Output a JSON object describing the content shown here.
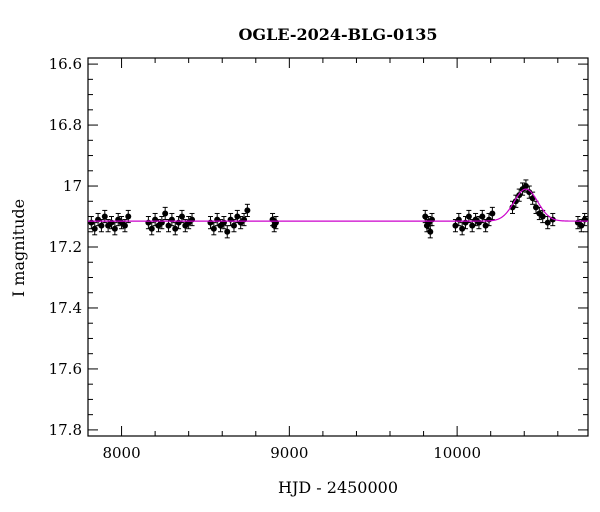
{
  "chart_data": {
    "type": "scatter",
    "title": "OGLE-2024-BLG-0135",
    "xlabel": "HJD - 2450000",
    "ylabel": "I magnitude",
    "xlim": [
      7800,
      10780
    ],
    "ylim": [
      17.82,
      16.58
    ],
    "y_inverted": true,
    "x_ticks": [
      8000,
      9000,
      10000
    ],
    "y_ticks": [
      16.6,
      16.8,
      17,
      17.2,
      17.4,
      17.6,
      17.8
    ],
    "y_tick_labels": [
      "16.6",
      "16.8",
      "17",
      "17.2",
      "17.4",
      "17.6",
      "17.8"
    ],
    "x_tick_labels": [
      "8000",
      "9000",
      "10000"
    ],
    "grid": false,
    "series": [
      {
        "kind": "observations",
        "color": "#000000",
        "typical_error": 0.02,
        "points": [
          [
            7820,
            17.12
          ],
          [
            7840,
            17.14
          ],
          [
            7860,
            17.11
          ],
          [
            7880,
            17.13
          ],
          [
            7900,
            17.1
          ],
          [
            7920,
            17.13
          ],
          [
            7940,
            17.12
          ],
          [
            7960,
            17.14
          ],
          [
            7980,
            17.11
          ],
          [
            8000,
            17.12
          ],
          [
            8020,
            17.13
          ],
          [
            8040,
            17.1
          ],
          [
            8160,
            17.12
          ],
          [
            8180,
            17.14
          ],
          [
            8200,
            17.11
          ],
          [
            8220,
            17.13
          ],
          [
            8240,
            17.12
          ],
          [
            8260,
            17.09
          ],
          [
            8280,
            17.13
          ],
          [
            8300,
            17.11
          ],
          [
            8320,
            17.14
          ],
          [
            8340,
            17.12
          ],
          [
            8360,
            17.1
          ],
          [
            8380,
            17.13
          ],
          [
            8400,
            17.12
          ],
          [
            8420,
            17.11
          ],
          [
            8530,
            17.12
          ],
          [
            8550,
            17.14
          ],
          [
            8570,
            17.11
          ],
          [
            8590,
            17.13
          ],
          [
            8610,
            17.12
          ],
          [
            8630,
            17.15
          ],
          [
            8650,
            17.11
          ],
          [
            8670,
            17.13
          ],
          [
            8690,
            17.1
          ],
          [
            8710,
            17.12
          ],
          [
            8730,
            17.11
          ],
          [
            8750,
            17.08
          ],
          [
            8900,
            17.11
          ],
          [
            8910,
            17.13
          ],
          [
            8920,
            17.12
          ],
          [
            9810,
            17.1
          ],
          [
            9820,
            17.13
          ],
          [
            9830,
            17.12
          ],
          [
            9840,
            17.15
          ],
          [
            9850,
            17.11
          ],
          [
            9990,
            17.13
          ],
          [
            10010,
            17.11
          ],
          [
            10030,
            17.14
          ],
          [
            10050,
            17.12
          ],
          [
            10070,
            17.1
          ],
          [
            10090,
            17.13
          ],
          [
            10110,
            17.11
          ],
          [
            10130,
            17.12
          ],
          [
            10150,
            17.1
          ],
          [
            10170,
            17.13
          ],
          [
            10190,
            17.11
          ],
          [
            10210,
            17.09
          ],
          [
            10330,
            17.07
          ],
          [
            10350,
            17.05
          ],
          [
            10370,
            17.03
          ],
          [
            10390,
            17.01
          ],
          [
            10410,
            17.0
          ],
          [
            10430,
            17.02
          ],
          [
            10450,
            17.04
          ],
          [
            10470,
            17.07
          ],
          [
            10490,
            17.09
          ],
          [
            10510,
            17.1
          ],
          [
            10540,
            17.12
          ],
          [
            10570,
            17.11
          ],
          [
            10720,
            17.12
          ],
          [
            10740,
            17.13
          ],
          [
            10760,
            17.11
          ]
        ]
      },
      {
        "kind": "model",
        "color": "#cc00cc",
        "baseline": 17.115,
        "peak_mag": 17.01,
        "peak_x": 10410,
        "width": 70
      }
    ]
  }
}
